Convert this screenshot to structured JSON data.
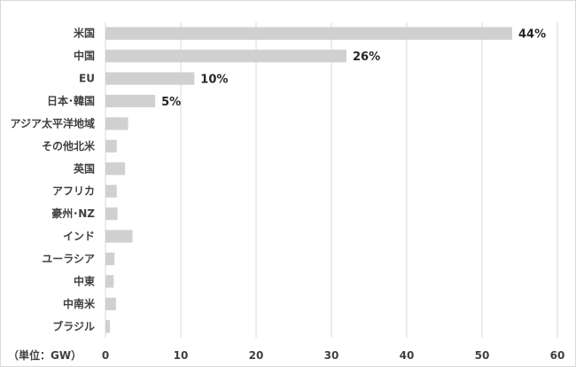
{
  "chart_data": {
    "type": "bar",
    "orientation": "horizontal",
    "categories": [
      "米国",
      "中国",
      "EU",
      "日本･韓国",
      "アジア太平洋地域",
      "その他北米",
      "英国",
      "アフリカ",
      "豪州･NZ",
      "インド",
      "ユーラシア",
      "中東",
      "中南米",
      "ブラジル"
    ],
    "values": [
      54.0,
      32.0,
      11.8,
      6.6,
      3.0,
      1.5,
      2.6,
      1.5,
      1.6,
      3.6,
      1.2,
      1.1,
      1.4,
      0.6
    ],
    "data_labels": [
      "44%",
      "26%",
      "10%",
      "5%",
      "",
      "",
      "",
      "",
      "",
      "",
      "",
      "",
      "",
      ""
    ],
    "xlim": [
      0,
      60
    ],
    "xticks": [
      0,
      10,
      20,
      30,
      40,
      50,
      60
    ],
    "unit_label": "（単位：GW）",
    "bar_color": "#d0d0d0",
    "grid": true,
    "legend": "none"
  }
}
